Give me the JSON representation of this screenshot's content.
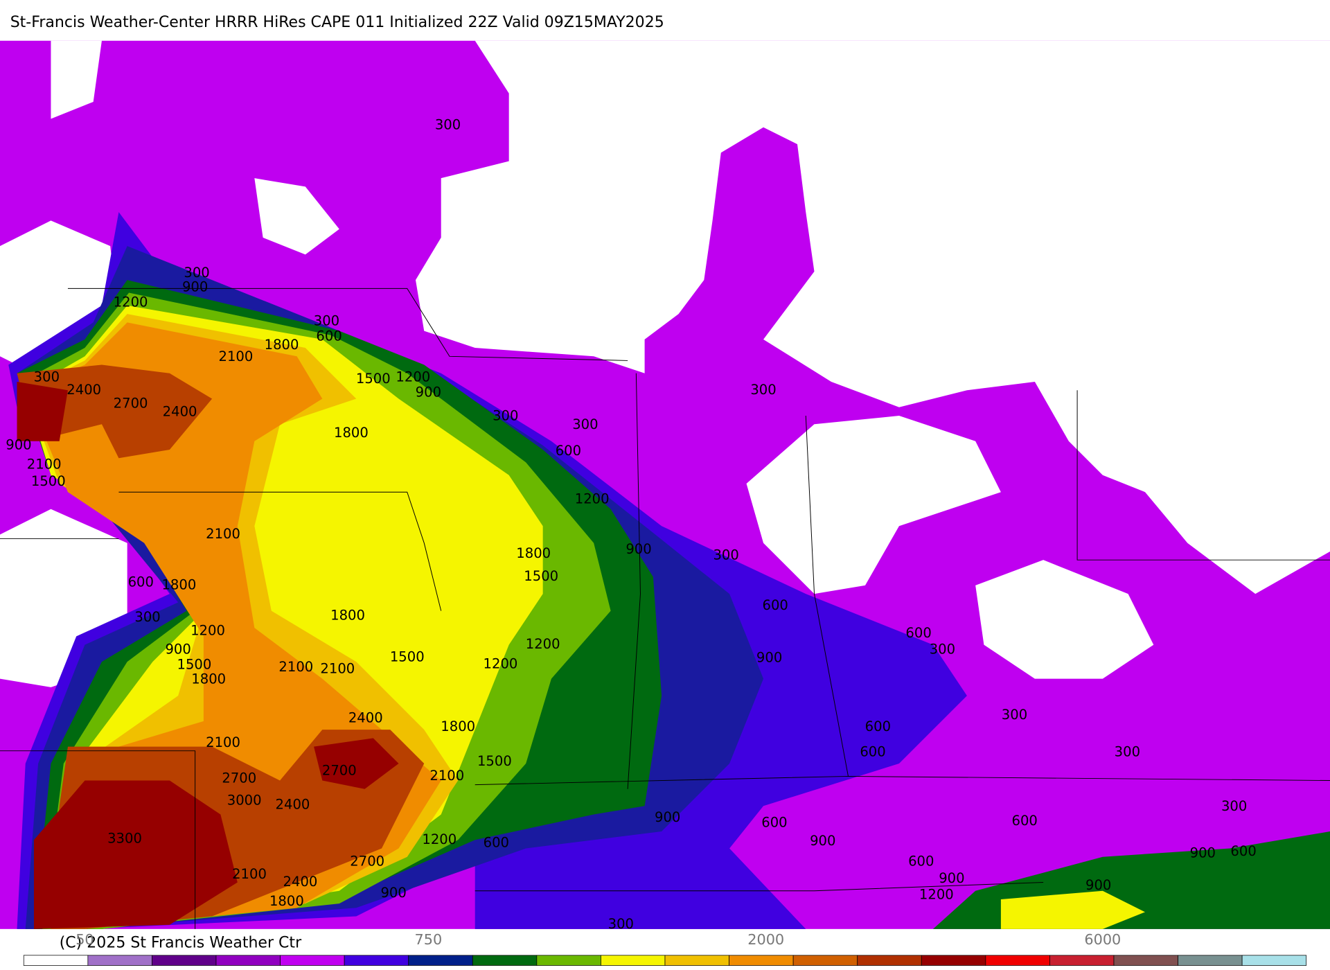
{
  "header": {
    "title": "St-Francis Weather-Center HRRR HiRes CAPE  011 Initialized  22Z Valid 09Z15MAY2025"
  },
  "contour_labels": [
    "300",
    "300",
    "900",
    "1200",
    "300",
    "600",
    "1800",
    "2100",
    "1500",
    "1200",
    "900",
    "300",
    "2400",
    "2700",
    "2400",
    "1800",
    "300",
    "300",
    "600",
    "300",
    "900",
    "2100",
    "1500",
    "1200",
    "2100",
    "1800",
    "1500",
    "900",
    "300",
    "600",
    "1800",
    "600",
    "1800",
    "300",
    "1200",
    "600",
    "300",
    "1200",
    "900",
    "1500",
    "900",
    "1500",
    "1200",
    "2100",
    "2100",
    "1800",
    "300",
    "2400",
    "1800",
    "600",
    "2100",
    "600",
    "300",
    "1500",
    "2700",
    "2100",
    "2700",
    "3000",
    "2400",
    "300",
    "900",
    "600",
    "600",
    "3300",
    "1200",
    "600",
    "900",
    "900",
    "600",
    "2700",
    "600",
    "900",
    "2100",
    "2400",
    "900",
    "900",
    "1200",
    "1800",
    "300"
  ],
  "colorbar": {
    "labels": [
      "50",
      "750",
      "2000",
      "6000"
    ]
  },
  "footer": {
    "copyright": "(C) 2025 St Francis Weather Ctr"
  }
}
